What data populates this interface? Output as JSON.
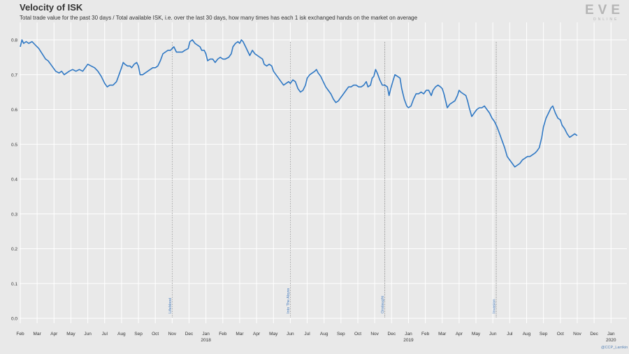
{
  "header": {
    "title": "Velocity of ISK",
    "subtitle": "Total trade value for the past 30 days / Total available ISK, i.e. over the last 30 days, how many times has each 1 isk exchanged hands on the market on average"
  },
  "logo": {
    "text": "EVE",
    "subtext": "ONLINE"
  },
  "credit": "@CCP_Larrikin",
  "colors": {
    "line": "#2f78c4",
    "background": "#e9e9e9",
    "grid": "#ffffff",
    "annotation": "#4a7fc0"
  },
  "chart_data": {
    "type": "line",
    "title": "Velocity of ISK",
    "xlabel": "",
    "ylabel": "",
    "ylim": [
      0,
      0.8
    ],
    "grid": true,
    "y_ticks": [
      "0.0",
      "0.1",
      "0.2",
      "0.3",
      "0.4",
      "0.5",
      "0.6",
      "0.7",
      "0.8"
    ],
    "x_ticks": [
      {
        "label": "Feb",
        "month": 0
      },
      {
        "label": "Mar",
        "month": 1
      },
      {
        "label": "Apr",
        "month": 2
      },
      {
        "label": "May",
        "month": 3
      },
      {
        "label": "Jun",
        "month": 4
      },
      {
        "label": "Jul",
        "month": 5
      },
      {
        "label": "Aug",
        "month": 6
      },
      {
        "label": "Sep",
        "month": 7
      },
      {
        "label": "Oct",
        "month": 8
      },
      {
        "label": "Nov",
        "month": 9
      },
      {
        "label": "Dec",
        "month": 10
      },
      {
        "label": "Jan",
        "month": 11,
        "year": "2018"
      },
      {
        "label": "Feb",
        "month": 12
      },
      {
        "label": "Mar",
        "month": 13
      },
      {
        "label": "Apr",
        "month": 14
      },
      {
        "label": "May",
        "month": 15
      },
      {
        "label": "Jun",
        "month": 16
      },
      {
        "label": "Jul",
        "month": 17
      },
      {
        "label": "Aug",
        "month": 18
      },
      {
        "label": "Sep",
        "month": 19
      },
      {
        "label": "Oct",
        "month": 20
      },
      {
        "label": "Nov",
        "month": 21
      },
      {
        "label": "Dec",
        "month": 22
      },
      {
        "label": "Jan",
        "month": 23,
        "year": "2019"
      },
      {
        "label": "Feb",
        "month": 24
      },
      {
        "label": "Mar",
        "month": 25
      },
      {
        "label": "Apr",
        "month": 26
      },
      {
        "label": "May",
        "month": 27
      },
      {
        "label": "Jun",
        "month": 28
      },
      {
        "label": "Jul",
        "month": 29
      },
      {
        "label": "Aug",
        "month": 30
      },
      {
        "label": "Sep",
        "month": 31
      },
      {
        "label": "Oct",
        "month": 32
      },
      {
        "label": "Nov",
        "month": 33
      },
      {
        "label": "Dec",
        "month": 34
      },
      {
        "label": "Jan",
        "month": 35,
        "year": "2020"
      }
    ],
    "events": [
      {
        "label": "Lifeblood",
        "month": 9.0
      },
      {
        "label": "Into The Abyss",
        "month": 16.0
      },
      {
        "label": "Onslaught",
        "month": 21.6
      },
      {
        "label": "Invasion",
        "month": 28.2
      }
    ],
    "series": [
      {
        "points": [
          [
            0.0,
            0.78
          ],
          [
            0.1,
            0.8
          ],
          [
            0.2,
            0.79
          ],
          [
            0.35,
            0.795
          ],
          [
            0.5,
            0.79
          ],
          [
            0.7,
            0.795
          ],
          [
            0.9,
            0.785
          ],
          [
            1.1,
            0.775
          ],
          [
            1.3,
            0.76
          ],
          [
            1.5,
            0.745
          ],
          [
            1.65,
            0.74
          ],
          [
            1.8,
            0.73
          ],
          [
            1.95,
            0.72
          ],
          [
            2.1,
            0.71
          ],
          [
            2.3,
            0.705
          ],
          [
            2.45,
            0.71
          ],
          [
            2.6,
            0.7
          ],
          [
            2.75,
            0.705
          ],
          [
            2.9,
            0.71
          ],
          [
            3.1,
            0.715
          ],
          [
            3.3,
            0.71
          ],
          [
            3.5,
            0.715
          ],
          [
            3.7,
            0.71
          ],
          [
            3.85,
            0.72
          ],
          [
            4.0,
            0.73
          ],
          [
            4.2,
            0.725
          ],
          [
            4.4,
            0.72
          ],
          [
            4.6,
            0.71
          ],
          [
            4.8,
            0.695
          ],
          [
            5.0,
            0.675
          ],
          [
            5.15,
            0.665
          ],
          [
            5.3,
            0.67
          ],
          [
            5.5,
            0.67
          ],
          [
            5.7,
            0.68
          ],
          [
            5.85,
            0.7
          ],
          [
            6.0,
            0.72
          ],
          [
            6.1,
            0.735
          ],
          [
            6.2,
            0.73
          ],
          [
            6.35,
            0.725
          ],
          [
            6.5,
            0.725
          ],
          [
            6.6,
            0.72
          ],
          [
            6.75,
            0.73
          ],
          [
            6.9,
            0.735
          ],
          [
            7.0,
            0.725
          ],
          [
            7.1,
            0.7
          ],
          [
            7.25,
            0.7
          ],
          [
            7.4,
            0.705
          ],
          [
            7.55,
            0.71
          ],
          [
            7.7,
            0.715
          ],
          [
            7.85,
            0.72
          ],
          [
            8.0,
            0.72
          ],
          [
            8.15,
            0.725
          ],
          [
            8.3,
            0.74
          ],
          [
            8.45,
            0.76
          ],
          [
            8.6,
            0.765
          ],
          [
            8.75,
            0.77
          ],
          [
            8.9,
            0.77
          ],
          [
            9.0,
            0.775
          ],
          [
            9.1,
            0.78
          ],
          [
            9.25,
            0.765
          ],
          [
            9.45,
            0.765
          ],
          [
            9.6,
            0.765
          ],
          [
            9.75,
            0.77
          ],
          [
            9.95,
            0.775
          ],
          [
            10.05,
            0.795
          ],
          [
            10.2,
            0.8
          ],
          [
            10.35,
            0.79
          ],
          [
            10.5,
            0.785
          ],
          [
            10.65,
            0.78
          ],
          [
            10.75,
            0.77
          ],
          [
            10.9,
            0.77
          ],
          [
            11.0,
            0.76
          ],
          [
            11.1,
            0.74
          ],
          [
            11.25,
            0.745
          ],
          [
            11.4,
            0.745
          ],
          [
            11.55,
            0.735
          ],
          [
            11.7,
            0.745
          ],
          [
            11.85,
            0.75
          ],
          [
            12.0,
            0.745
          ],
          [
            12.15,
            0.745
          ],
          [
            12.35,
            0.75
          ],
          [
            12.5,
            0.76
          ],
          [
            12.6,
            0.78
          ],
          [
            12.75,
            0.79
          ],
          [
            12.9,
            0.795
          ],
          [
            13.0,
            0.79
          ],
          [
            13.1,
            0.8
          ],
          [
            13.2,
            0.795
          ],
          [
            13.35,
            0.78
          ],
          [
            13.5,
            0.765
          ],
          [
            13.6,
            0.755
          ],
          [
            13.75,
            0.77
          ],
          [
            13.9,
            0.76
          ],
          [
            14.05,
            0.755
          ],
          [
            14.2,
            0.75
          ],
          [
            14.35,
            0.745
          ],
          [
            14.45,
            0.73
          ],
          [
            14.6,
            0.725
          ],
          [
            14.75,
            0.73
          ],
          [
            14.9,
            0.725
          ],
          [
            15.0,
            0.71
          ],
          [
            15.15,
            0.7
          ],
          [
            15.3,
            0.69
          ],
          [
            15.45,
            0.68
          ],
          [
            15.6,
            0.67
          ],
          [
            15.75,
            0.675
          ],
          [
            15.9,
            0.68
          ],
          [
            16.0,
            0.675
          ],
          [
            16.15,
            0.685
          ],
          [
            16.3,
            0.68
          ],
          [
            16.45,
            0.66
          ],
          [
            16.6,
            0.65
          ],
          [
            16.75,
            0.655
          ],
          [
            16.9,
            0.67
          ],
          [
            17.0,
            0.69
          ],
          [
            17.15,
            0.7
          ],
          [
            17.3,
            0.705
          ],
          [
            17.45,
            0.71
          ],
          [
            17.55,
            0.715
          ],
          [
            17.65,
            0.705
          ],
          [
            17.8,
            0.695
          ],
          [
            17.95,
            0.68
          ],
          [
            18.1,
            0.665
          ],
          [
            18.25,
            0.655
          ],
          [
            18.4,
            0.645
          ],
          [
            18.55,
            0.63
          ],
          [
            18.7,
            0.62
          ],
          [
            18.85,
            0.625
          ],
          [
            19.0,
            0.635
          ],
          [
            19.15,
            0.645
          ],
          [
            19.3,
            0.655
          ],
          [
            19.45,
            0.665
          ],
          [
            19.6,
            0.665
          ],
          [
            19.75,
            0.67
          ],
          [
            19.9,
            0.67
          ],
          [
            20.05,
            0.665
          ],
          [
            20.2,
            0.665
          ],
          [
            20.35,
            0.67
          ],
          [
            20.5,
            0.68
          ],
          [
            20.6,
            0.665
          ],
          [
            20.75,
            0.67
          ],
          [
            20.85,
            0.69
          ],
          [
            20.95,
            0.695
          ],
          [
            21.05,
            0.715
          ],
          [
            21.15,
            0.705
          ],
          [
            21.3,
            0.685
          ],
          [
            21.45,
            0.67
          ],
          [
            21.6,
            0.67
          ],
          [
            21.75,
            0.665
          ],
          [
            21.85,
            0.64
          ],
          [
            21.95,
            0.66
          ],
          [
            22.1,
            0.685
          ],
          [
            22.2,
            0.7
          ],
          [
            22.35,
            0.695
          ],
          [
            22.5,
            0.69
          ],
          [
            22.6,
            0.66
          ],
          [
            22.75,
            0.63
          ],
          [
            22.9,
            0.61
          ],
          [
            23.0,
            0.605
          ],
          [
            23.15,
            0.61
          ],
          [
            23.3,
            0.63
          ],
          [
            23.45,
            0.645
          ],
          [
            23.6,
            0.645
          ],
          [
            23.75,
            0.65
          ],
          [
            23.9,
            0.645
          ],
          [
            24.05,
            0.655
          ],
          [
            24.2,
            0.655
          ],
          [
            24.35,
            0.64
          ],
          [
            24.45,
            0.655
          ],
          [
            24.6,
            0.665
          ],
          [
            24.75,
            0.67
          ],
          [
            24.9,
            0.665
          ],
          [
            25.0,
            0.66
          ],
          [
            25.1,
            0.645
          ],
          [
            25.2,
            0.625
          ],
          [
            25.3,
            0.605
          ],
          [
            25.45,
            0.615
          ],
          [
            25.6,
            0.62
          ],
          [
            25.75,
            0.625
          ],
          [
            25.9,
            0.64
          ],
          [
            26.0,
            0.655
          ],
          [
            26.1,
            0.65
          ],
          [
            26.25,
            0.645
          ],
          [
            26.4,
            0.64
          ],
          [
            26.5,
            0.625
          ],
          [
            26.6,
            0.605
          ],
          [
            26.75,
            0.58
          ],
          [
            26.9,
            0.59
          ],
          [
            27.05,
            0.6
          ],
          [
            27.2,
            0.605
          ],
          [
            27.35,
            0.605
          ],
          [
            27.5,
            0.61
          ],
          [
            27.65,
            0.6
          ],
          [
            27.8,
            0.59
          ],
          [
            27.95,
            0.575
          ],
          [
            28.1,
            0.565
          ],
          [
            28.25,
            0.55
          ],
          [
            28.4,
            0.53
          ],
          [
            28.55,
            0.51
          ],
          [
            28.7,
            0.49
          ],
          [
            28.85,
            0.465
          ],
          [
            29.0,
            0.455
          ],
          [
            29.15,
            0.445
          ],
          [
            29.3,
            0.435
          ],
          [
            29.45,
            0.44
          ],
          [
            29.6,
            0.445
          ],
          [
            29.75,
            0.455
          ],
          [
            29.9,
            0.46
          ],
          [
            30.05,
            0.465
          ],
          [
            30.2,
            0.465
          ],
          [
            30.35,
            0.47
          ],
          [
            30.5,
            0.475
          ],
          [
            30.6,
            0.48
          ],
          [
            30.75,
            0.49
          ],
          [
            30.9,
            0.52
          ],
          [
            31.0,
            0.55
          ],
          [
            31.15,
            0.575
          ],
          [
            31.3,
            0.59
          ],
          [
            31.45,
            0.605
          ],
          [
            31.55,
            0.61
          ],
          [
            31.7,
            0.59
          ],
          [
            31.85,
            0.575
          ],
          [
            32.0,
            0.57
          ],
          [
            32.1,
            0.555
          ],
          [
            32.25,
            0.545
          ],
          [
            32.4,
            0.53
          ],
          [
            32.55,
            0.52
          ],
          [
            32.7,
            0.525
          ],
          [
            32.85,
            0.53
          ],
          [
            33.0,
            0.525
          ]
        ]
      }
    ]
  }
}
